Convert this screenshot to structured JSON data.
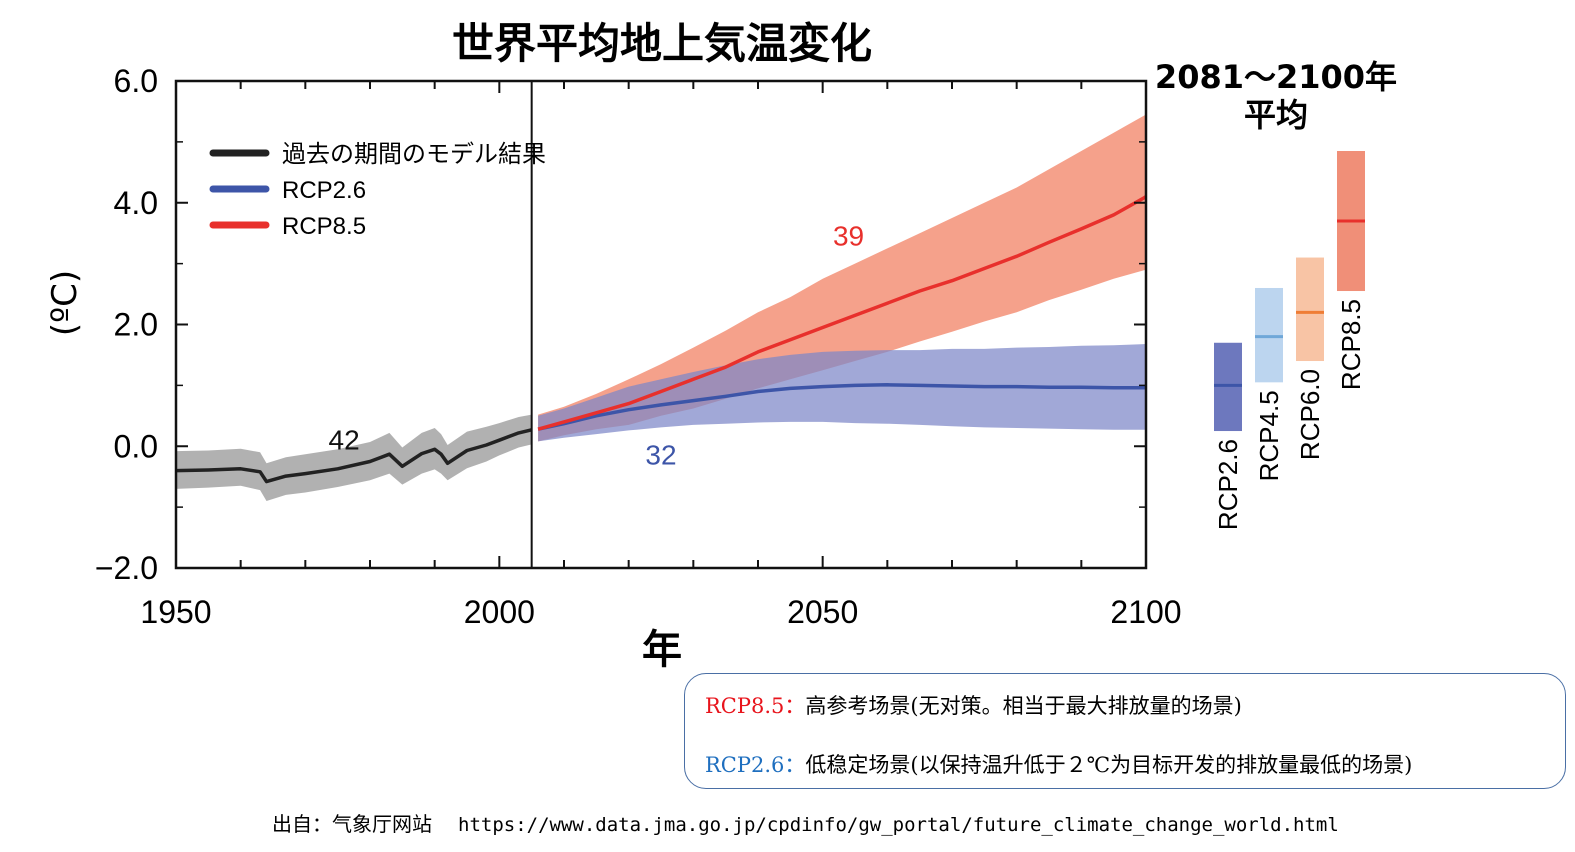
{
  "chart_data": {
    "type": "line",
    "title": "世界平均地上気温変化",
    "xlabel": "年",
    "ylabel": "(ºC)",
    "xlim": [
      1950,
      2100
    ],
    "ylim": [
      -2.0,
      6.0
    ],
    "x_ticks": [
      "1950",
      "2000",
      "2050",
      "2100"
    ],
    "y_ticks": [
      "6.0",
      "4.0",
      "2.0",
      "0.0",
      "−2.0"
    ],
    "divider_year": 2005,
    "legend_position": "top-left",
    "legend": [
      {
        "label": "過去の期間のモデル結果",
        "color": "#222222"
      },
      {
        "label": "RCP2.6",
        "color": "#3d55a8"
      },
      {
        "label": "RCP8.5",
        "color": "#e8302c"
      }
    ],
    "series": [
      {
        "name": "過去の期間のモデル結果",
        "color": "#222222",
        "band_color": "#a8a8a8",
        "model_count": "42",
        "x": [
          1950,
          1955,
          1960,
          1963,
          1964,
          1967,
          1970,
          1975,
          1980,
          1983,
          1985,
          1988,
          1990,
          1991,
          1992,
          1995,
          1998,
          2000,
          2003,
          2005
        ],
        "y": [
          -0.4,
          -0.39,
          -0.37,
          -0.42,
          -0.58,
          -0.49,
          -0.45,
          -0.37,
          -0.25,
          -0.13,
          -0.33,
          -0.12,
          -0.05,
          -0.13,
          -0.28,
          -0.07,
          0.02,
          0.1,
          0.22,
          0.27
        ],
        "lower": [
          -0.7,
          -0.68,
          -0.65,
          -0.72,
          -0.9,
          -0.8,
          -0.76,
          -0.67,
          -0.56,
          -0.45,
          -0.63,
          -0.45,
          -0.38,
          -0.45,
          -0.56,
          -0.36,
          -0.25,
          -0.15,
          -0.02,
          0.03
        ],
        "upper": [
          -0.08,
          -0.07,
          -0.04,
          -0.1,
          -0.28,
          -0.18,
          -0.13,
          -0.05,
          0.07,
          0.22,
          -0.02,
          0.22,
          0.3,
          0.2,
          0.02,
          0.24,
          0.32,
          0.38,
          0.48,
          0.52
        ]
      },
      {
        "name": "RCP2.6",
        "color": "#3d55a8",
        "band_color": "#7d86c8",
        "model_count": "32",
        "x": [
          2006,
          2010,
          2015,
          2020,
          2025,
          2030,
          2035,
          2040,
          2045,
          2050,
          2055,
          2060,
          2065,
          2070,
          2075,
          2080,
          2085,
          2090,
          2095,
          2100
        ],
        "y": [
          0.28,
          0.37,
          0.5,
          0.6,
          0.68,
          0.75,
          0.82,
          0.9,
          0.95,
          0.98,
          1.0,
          1.01,
          1.0,
          0.99,
          0.98,
          0.98,
          0.97,
          0.97,
          0.96,
          0.96
        ],
        "lower": [
          0.08,
          0.14,
          0.2,
          0.26,
          0.31,
          0.35,
          0.37,
          0.39,
          0.4,
          0.4,
          0.38,
          0.37,
          0.35,
          0.33,
          0.31,
          0.3,
          0.29,
          0.28,
          0.27,
          0.27
        ],
        "upper": [
          0.5,
          0.62,
          0.8,
          0.98,
          1.1,
          1.22,
          1.33,
          1.43,
          1.5,
          1.55,
          1.57,
          1.58,
          1.58,
          1.6,
          1.6,
          1.62,
          1.63,
          1.65,
          1.66,
          1.68
        ]
      },
      {
        "name": "RCP8.5",
        "color": "#e8302c",
        "band_color": "#f4977e",
        "model_count": "39",
        "x": [
          2006,
          2010,
          2015,
          2020,
          2025,
          2030,
          2035,
          2040,
          2045,
          2050,
          2055,
          2060,
          2065,
          2070,
          2075,
          2080,
          2085,
          2090,
          2095,
          2100
        ],
        "y": [
          0.28,
          0.4,
          0.55,
          0.7,
          0.9,
          1.1,
          1.3,
          1.55,
          1.75,
          1.95,
          2.15,
          2.35,
          2.55,
          2.72,
          2.92,
          3.12,
          3.35,
          3.57,
          3.8,
          4.1
        ],
        "lower": [
          0.08,
          0.18,
          0.28,
          0.35,
          0.5,
          0.62,
          0.78,
          0.95,
          1.1,
          1.25,
          1.4,
          1.55,
          1.72,
          1.88,
          2.05,
          2.2,
          2.4,
          2.57,
          2.75,
          2.9
        ],
        "upper": [
          0.52,
          0.65,
          0.86,
          1.1,
          1.35,
          1.62,
          1.9,
          2.2,
          2.45,
          2.75,
          3.0,
          3.25,
          3.5,
          3.75,
          4.0,
          4.25,
          4.55,
          4.85,
          5.15,
          5.45
        ]
      }
    ],
    "period_average": {
      "title_line1": "2081～2100年",
      "title_line2": "平均",
      "bars": [
        {
          "name": "RCP2.6",
          "mean": 1.0,
          "low": 0.25,
          "high": 1.7,
          "fill": "#6d78be",
          "line": "#3d55a8"
        },
        {
          "name": "RCP4.5",
          "mean": 1.8,
          "low": 1.05,
          "high": 2.6,
          "fill": "#bcd5ef",
          "line": "#6fa7d8"
        },
        {
          "name": "RCP6.0",
          "mean": 2.2,
          "low": 1.4,
          "high": 3.1,
          "fill": "#f8c4a5",
          "line": "#ef7d35"
        },
        {
          "name": "RCP8.5",
          "mean": 3.7,
          "low": 2.55,
          "high": 4.85,
          "fill": "#f08f78",
          "line": "#e8302c"
        }
      ]
    }
  },
  "notes": {
    "rcp85_label": "RCP8.5：",
    "rcp85_label_color": "#e8141c",
    "rcp85_text": "高参考场景(无对策。相当于最大排放量的场景)",
    "rcp26_label": "RCP2.6：",
    "rcp26_label_color": "#1f6fbf",
    "rcp26_text": "低稳定场景(以保持温升低于２℃为目标开发的排放量最低的场景)"
  },
  "source": {
    "label": "出自：气象厅网站",
    "url": "https://www.data.jma.go.jp/cpdinfo/gw_portal/future_climate_change_world.html"
  }
}
